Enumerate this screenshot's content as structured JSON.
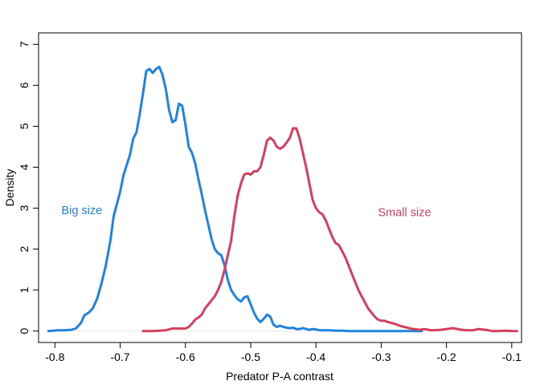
{
  "chart_data": {
    "type": "line",
    "title": "",
    "xlabel": "Predator P-A contrast",
    "ylabel": "Density",
    "xlim": [
      -0.825,
      -0.085
    ],
    "ylim": [
      -0.28,
      7.28
    ],
    "xticks": [
      -0.8,
      -0.7,
      -0.6,
      -0.5,
      -0.4,
      -0.3,
      -0.2,
      -0.1
    ],
    "xtick_labels": [
      "-0.8",
      "-0.7",
      "-0.6",
      "-0.5",
      "-0.4",
      "-0.3",
      "-0.2",
      "-0.1"
    ],
    "yticks": [
      0,
      1,
      2,
      3,
      4,
      5,
      6,
      7
    ],
    "ytick_labels": [
      "0",
      "1",
      "2",
      "3",
      "4",
      "5",
      "6",
      "7"
    ],
    "grid": false,
    "legend": "none",
    "baseline": 0,
    "series": [
      {
        "name": "Big size",
        "color": "#2183E0",
        "label_at": [
          -0.79,
          2.95
        ],
        "x": [
          -0.81,
          -0.795,
          -0.785,
          -0.775,
          -0.768,
          -0.76,
          -0.755,
          -0.748,
          -0.742,
          -0.735,
          -0.728,
          -0.722,
          -0.715,
          -0.71,
          -0.705,
          -0.7,
          -0.695,
          -0.69,
          -0.685,
          -0.68,
          -0.675,
          -0.67,
          -0.665,
          -0.66,
          -0.655,
          -0.65,
          -0.645,
          -0.64,
          -0.635,
          -0.63,
          -0.625,
          -0.62,
          -0.615,
          -0.61,
          -0.605,
          -0.6,
          -0.595,
          -0.59,
          -0.585,
          -0.58,
          -0.575,
          -0.57,
          -0.565,
          -0.56,
          -0.555,
          -0.55,
          -0.545,
          -0.54,
          -0.535,
          -0.53,
          -0.525,
          -0.52,
          -0.515,
          -0.51,
          -0.505,
          -0.5,
          -0.495,
          -0.49,
          -0.485,
          -0.48,
          -0.475,
          -0.47,
          -0.465,
          -0.46,
          -0.455,
          -0.45,
          -0.445,
          -0.44,
          -0.435,
          -0.43,
          -0.425,
          -0.42,
          -0.415,
          -0.41,
          -0.405,
          -0.4,
          -0.395,
          -0.39,
          -0.38,
          -0.37,
          -0.36,
          -0.35,
          -0.34,
          -0.33,
          -0.32,
          -0.31,
          -0.3,
          -0.29,
          -0.28,
          -0.27,
          -0.26,
          -0.25,
          -0.238
        ],
        "y": [
          0.0,
          0.02,
          0.02,
          0.03,
          0.06,
          0.2,
          0.38,
          0.45,
          0.55,
          0.8,
          1.2,
          1.6,
          2.2,
          2.8,
          3.1,
          3.4,
          3.8,
          4.05,
          4.3,
          4.7,
          4.85,
          5.3,
          5.8,
          6.35,
          6.4,
          6.3,
          6.4,
          6.45,
          6.25,
          5.9,
          5.4,
          5.1,
          5.15,
          5.55,
          5.5,
          5.05,
          4.5,
          4.35,
          4.1,
          3.7,
          3.35,
          2.95,
          2.6,
          2.25,
          2.0,
          1.9,
          1.85,
          1.6,
          1.25,
          1.0,
          0.88,
          0.78,
          0.72,
          0.82,
          0.85,
          0.65,
          0.45,
          0.3,
          0.22,
          0.3,
          0.4,
          0.35,
          0.15,
          0.1,
          0.13,
          0.1,
          0.08,
          0.07,
          0.08,
          0.05,
          0.05,
          0.07,
          0.05,
          0.03,
          0.05,
          0.04,
          0.02,
          0.02,
          0.02,
          0.01,
          0.01,
          0.0,
          0.0,
          0.0,
          0.0,
          0.0,
          0.0,
          0.0,
          0.0,
          0.0,
          0.0,
          0.0,
          0.0
        ]
      },
      {
        "name": "Small size",
        "color": "#D63E5E",
        "label_at": [
          -0.305,
          2.9
        ],
        "x": [
          -0.665,
          -0.65,
          -0.64,
          -0.63,
          -0.62,
          -0.61,
          -0.6,
          -0.595,
          -0.59,
          -0.585,
          -0.58,
          -0.575,
          -0.57,
          -0.565,
          -0.56,
          -0.555,
          -0.55,
          -0.545,
          -0.54,
          -0.535,
          -0.53,
          -0.525,
          -0.52,
          -0.515,
          -0.51,
          -0.505,
          -0.5,
          -0.495,
          -0.49,
          -0.485,
          -0.48,
          -0.475,
          -0.47,
          -0.465,
          -0.46,
          -0.455,
          -0.45,
          -0.445,
          -0.44,
          -0.435,
          -0.43,
          -0.425,
          -0.42,
          -0.415,
          -0.41,
          -0.405,
          -0.4,
          -0.395,
          -0.39,
          -0.385,
          -0.38,
          -0.375,
          -0.37,
          -0.365,
          -0.36,
          -0.355,
          -0.35,
          -0.345,
          -0.34,
          -0.335,
          -0.33,
          -0.325,
          -0.32,
          -0.315,
          -0.31,
          -0.305,
          -0.3,
          -0.295,
          -0.29,
          -0.285,
          -0.28,
          -0.275,
          -0.27,
          -0.265,
          -0.26,
          -0.255,
          -0.25,
          -0.245,
          -0.24,
          -0.235,
          -0.23,
          -0.225,
          -0.22,
          -0.21,
          -0.2,
          -0.19,
          -0.18,
          -0.17,
          -0.16,
          -0.15,
          -0.14,
          -0.13,
          -0.12,
          -0.11,
          -0.1,
          -0.092
        ],
        "y": [
          0.0,
          0.0,
          0.01,
          0.02,
          0.06,
          0.06,
          0.06,
          0.1,
          0.18,
          0.28,
          0.33,
          0.4,
          0.55,
          0.65,
          0.75,
          0.85,
          1.0,
          1.2,
          1.5,
          1.85,
          2.2,
          2.8,
          3.3,
          3.6,
          3.82,
          3.85,
          3.82,
          3.9,
          3.9,
          4.0,
          4.3,
          4.65,
          4.72,
          4.65,
          4.5,
          4.45,
          4.5,
          4.6,
          4.72,
          4.95,
          4.95,
          4.7,
          4.35,
          4.0,
          3.6,
          3.2,
          3.0,
          2.9,
          2.85,
          2.7,
          2.5,
          2.3,
          2.15,
          2.1,
          1.95,
          1.8,
          1.6,
          1.4,
          1.2,
          1.0,
          0.85,
          0.7,
          0.55,
          0.45,
          0.35,
          0.28,
          0.25,
          0.25,
          0.22,
          0.2,
          0.18,
          0.15,
          0.12,
          0.1,
          0.08,
          0.06,
          0.05,
          0.04,
          0.03,
          0.05,
          0.04,
          0.02,
          0.02,
          0.03,
          0.05,
          0.07,
          0.04,
          0.02,
          0.02,
          0.05,
          0.03,
          0.0,
          0.0,
          0.01,
          0.0,
          0.0
        ]
      }
    ]
  }
}
